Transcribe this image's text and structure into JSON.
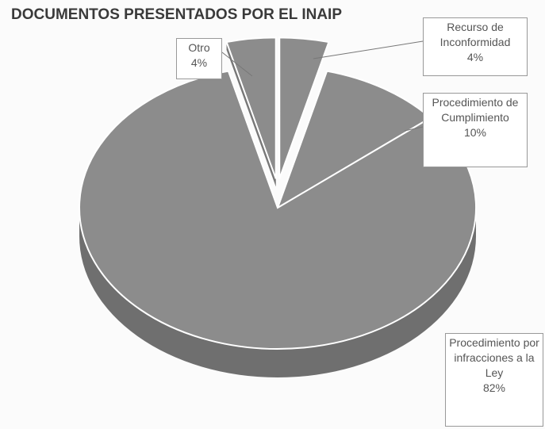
{
  "chart_data": {
    "type": "pie",
    "title": "DOCUMENTOS PRESENTADOS POR EL INAIP",
    "categories": [
      "Recurso de Inconformidad",
      "Procedimiento de Cumplimiento",
      "Procedimiento por infracciones a la Ley",
      "Otro"
    ],
    "values": [
      4,
      10,
      82,
      4
    ],
    "value_labels": [
      "4%",
      "10%",
      "82%",
      "4%"
    ],
    "color": "#8c8c8c"
  }
}
